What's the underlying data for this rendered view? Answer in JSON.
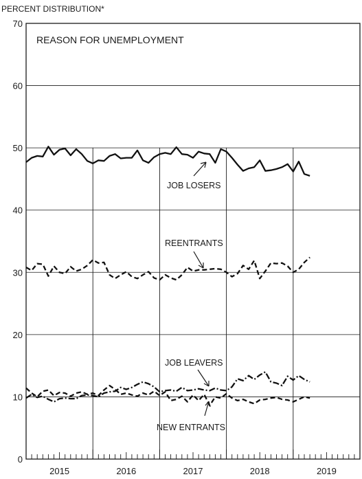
{
  "chart_data": {
    "type": "line",
    "title": "REASON FOR UNEMPLOYMENT",
    "ylabel": "PERCENT DISTRIBUTION*",
    "xlabel": "",
    "ylim": [
      0,
      70
    ],
    "yticks": [
      "0",
      "10",
      "20",
      "30",
      "40",
      "50",
      "60",
      "70"
    ],
    "xlim": [
      2015.0,
      2020.0
    ],
    "xtick_labels": [
      "2015",
      "2016",
      "2017",
      "2018",
      "2019"
    ],
    "x_minor_ticks": "monthly",
    "grid": "horizontal gridlines every 10; vertical lines at year boundaries",
    "legend": "none (series labeled directly with arrows)",
    "annotations": [
      "JOB LOSERS",
      "REENTRANTS",
      "JOB LEAVERS",
      "NEW ENTRANTS"
    ],
    "series": [
      {
        "name": "JOB LOSERS",
        "style": "solid",
        "x": [
          2015.0,
          2015.083,
          2015.167,
          2015.25,
          2015.333,
          2015.417,
          2015.5,
          2015.583,
          2015.667,
          2015.75,
          2015.833,
          2015.917,
          2016.0,
          2016.083,
          2016.167,
          2016.25,
          2016.333,
          2016.417,
          2016.5,
          2016.583,
          2016.667,
          2016.75,
          2016.833,
          2016.917,
          2017.0,
          2017.083,
          2017.167,
          2017.25,
          2017.333,
          2017.417,
          2017.5,
          2017.583,
          2017.667,
          2017.75,
          2017.833,
          2017.917,
          2018.0,
          2018.083,
          2018.167,
          2018.25,
          2018.333,
          2018.417,
          2018.5,
          2018.583,
          2018.667,
          2018.75,
          2018.833,
          2018.917,
          2019.0,
          2019.083,
          2019.167,
          2019.25
        ],
        "values": [
          47.7,
          48.4,
          48.7,
          48.6,
          50.2,
          48.9,
          49.7,
          49.9,
          48.8,
          49.8,
          49.0,
          47.9,
          47.5,
          48.0,
          47.9,
          48.7,
          49.0,
          48.3,
          48.4,
          48.4,
          49.6,
          48.0,
          47.6,
          48.5,
          49.0,
          49.2,
          49.0,
          50.1,
          49.0,
          48.9,
          48.4,
          49.4,
          49.1,
          49.0,
          47.6,
          49.8,
          49.4,
          48.4,
          47.3,
          46.3,
          46.7,
          46.9,
          48.0,
          46.3,
          46.4,
          46.6,
          46.9,
          47.4,
          46.2,
          47.8,
          45.8,
          45.5
        ]
      },
      {
        "name": "REENTRANTS",
        "style": "dashed",
        "x": [
          2015.0,
          2015.083,
          2015.167,
          2015.25,
          2015.333,
          2015.417,
          2015.5,
          2015.583,
          2015.667,
          2015.75,
          2015.833,
          2015.917,
          2016.0,
          2016.083,
          2016.167,
          2016.25,
          2016.333,
          2016.417,
          2016.5,
          2016.583,
          2016.667,
          2016.75,
          2016.833,
          2016.917,
          2017.0,
          2017.083,
          2017.167,
          2017.25,
          2017.333,
          2017.417,
          2017.5,
          2017.583,
          2017.667,
          2017.75,
          2017.833,
          2017.917,
          2018.0,
          2018.083,
          2018.167,
          2018.25,
          2018.333,
          2018.417,
          2018.5,
          2018.583,
          2018.667,
          2018.75,
          2018.833,
          2018.917,
          2019.0,
          2019.083,
          2019.167,
          2019.25
        ],
        "values": [
          30.8,
          30.3,
          31.4,
          31.3,
          29.4,
          31.0,
          30.0,
          29.8,
          30.9,
          30.2,
          30.5,
          31.1,
          32.0,
          31.5,
          31.6,
          29.6,
          29.0,
          29.6,
          30.1,
          29.3,
          29.0,
          29.6,
          30.1,
          29.1,
          28.8,
          29.6,
          29.1,
          28.8,
          29.6,
          30.8,
          30.2,
          30.4,
          30.4,
          30.5,
          30.6,
          30.5,
          30.0,
          29.3,
          29.8,
          31.1,
          30.5,
          31.9,
          29.0,
          30.2,
          31.5,
          31.4,
          31.5,
          31.0,
          30.0,
          30.5,
          31.6,
          32.4
        ]
      },
      {
        "name": "JOB LEAVERS",
        "style": "dash-dot",
        "x": [
          2015.0,
          2015.083,
          2015.167,
          2015.25,
          2015.333,
          2015.417,
          2015.5,
          2015.583,
          2015.667,
          2015.75,
          2015.833,
          2015.917,
          2016.0,
          2016.083,
          2016.167,
          2016.25,
          2016.333,
          2016.417,
          2016.5,
          2016.583,
          2016.667,
          2016.75,
          2016.833,
          2016.917,
          2017.0,
          2017.083,
          2017.167,
          2017.25,
          2017.333,
          2017.417,
          2017.5,
          2017.583,
          2017.667,
          2017.75,
          2017.833,
          2017.917,
          2018.0,
          2018.083,
          2018.167,
          2018.25,
          2018.333,
          2018.417,
          2018.5,
          2018.583,
          2018.667,
          2018.75,
          2018.833,
          2018.917,
          2019.0,
          2019.083,
          2019.167,
          2019.25
        ],
        "values": [
          9.8,
          10.4,
          9.9,
          10.1,
          9.6,
          9.2,
          9.7,
          9.8,
          9.7,
          9.7,
          10.2,
          10.3,
          10.2,
          10.0,
          10.6,
          10.8,
          10.9,
          11.5,
          11.2,
          11.5,
          12.0,
          12.4,
          12.1,
          11.6,
          10.8,
          11.0,
          11.1,
          10.9,
          11.5,
          11.0,
          11.1,
          11.3,
          11.1,
          11.0,
          11.4,
          11.1,
          11.0,
          11.6,
          12.9,
          12.6,
          13.4,
          12.8,
          13.5,
          14.0,
          12.4,
          12.2,
          11.8,
          13.3,
          12.7,
          13.4,
          12.8,
          12.4
        ]
      },
      {
        "name": "NEW ENTRANTS",
        "style": "dashed",
        "x": [
          2015.0,
          2015.083,
          2015.167,
          2015.25,
          2015.333,
          2015.417,
          2015.5,
          2015.583,
          2015.667,
          2015.75,
          2015.833,
          2015.917,
          2016.0,
          2016.083,
          2016.167,
          2016.25,
          2016.333,
          2016.417,
          2016.5,
          2016.583,
          2016.667,
          2016.75,
          2016.833,
          2016.917,
          2017.0,
          2017.083,
          2017.167,
          2017.25,
          2017.333,
          2017.417,
          2017.5,
          2017.583,
          2017.667,
          2017.75,
          2017.833,
          2017.917,
          2018.0,
          2018.083,
          2018.167,
          2018.25,
          2018.333,
          2018.417,
          2018.5,
          2018.583,
          2018.667,
          2018.75,
          2018.833,
          2018.917,
          2019.0,
          2019.083,
          2019.167,
          2019.25
        ],
        "values": [
          11.4,
          10.6,
          10.0,
          10.9,
          11.1,
          10.2,
          10.7,
          10.6,
          10.1,
          10.6,
          10.8,
          10.4,
          10.6,
          10.2,
          11.1,
          11.8,
          11.2,
          10.4,
          10.6,
          10.3,
          10.1,
          10.6,
          10.3,
          10.9,
          10.2,
          10.8,
          9.4,
          9.6,
          10.1,
          9.2,
          10.3,
          9.4,
          10.4,
          8.6,
          10.0,
          9.8,
          10.5,
          9.8,
          9.4,
          9.6,
          9.2,
          8.9,
          9.5,
          9.6,
          9.8,
          9.9,
          9.6,
          9.5,
          9.2,
          9.6,
          10.0,
          9.8
        ]
      }
    ]
  }
}
